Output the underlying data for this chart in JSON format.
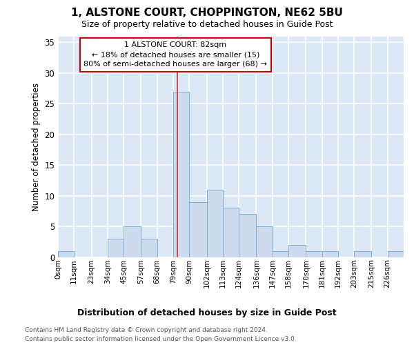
{
  "title": "1, ALSTONE COURT, CHOPPINGTON, NE62 5BU",
  "subtitle": "Size of property relative to detached houses in Guide Post",
  "xlabel_bottom": "Distribution of detached houses by size in Guide Post",
  "ylabel": "Number of detached properties",
  "bar_color": "#ccdcee",
  "bar_edge_color": "#7bafd4",
  "axes_bg_color": "#dce8f5",
  "fig_bg_color": "#ffffff",
  "grid_color": "#ffffff",
  "bin_edges": [
    0,
    11,
    23,
    34,
    45,
    57,
    68,
    79,
    90,
    102,
    113,
    124,
    136,
    147,
    158,
    170,
    181,
    192,
    203,
    215,
    226,
    237
  ],
  "bar_heights": [
    1,
    0,
    0,
    3,
    5,
    3,
    0,
    27,
    9,
    11,
    8,
    7,
    5,
    1,
    2,
    1,
    1,
    0,
    1,
    0,
    1
  ],
  "tick_labels": [
    "0sqm",
    "11sqm",
    "23sqm",
    "34sqm",
    "45sqm",
    "57sqm",
    "68sqm",
    "79sqm",
    "90sqm",
    "102sqm",
    "113sqm",
    "124sqm",
    "136sqm",
    "147sqm",
    "158sqm",
    "170sqm",
    "181sqm",
    "192sqm",
    "203sqm",
    "215sqm",
    "226sqm"
  ],
  "property_size": 82,
  "vline_color": "#cc3333",
  "annotation_text": "1 ALSTONE COURT: 82sqm\n← 18% of detached houses are smaller (15)\n80% of semi-detached houses are larger (68) →",
  "annotation_box_facecolor": "#ffffff",
  "annotation_box_edgecolor": "#cc0000",
  "ylim": [
    0,
    36
  ],
  "yticks": [
    0,
    5,
    10,
    15,
    20,
    25,
    30,
    35
  ],
  "footer_line1": "Contains HM Land Registry data © Crown copyright and database right 2024.",
  "footer_line2": "Contains public sector information licensed under the Open Government Licence v3.0."
}
